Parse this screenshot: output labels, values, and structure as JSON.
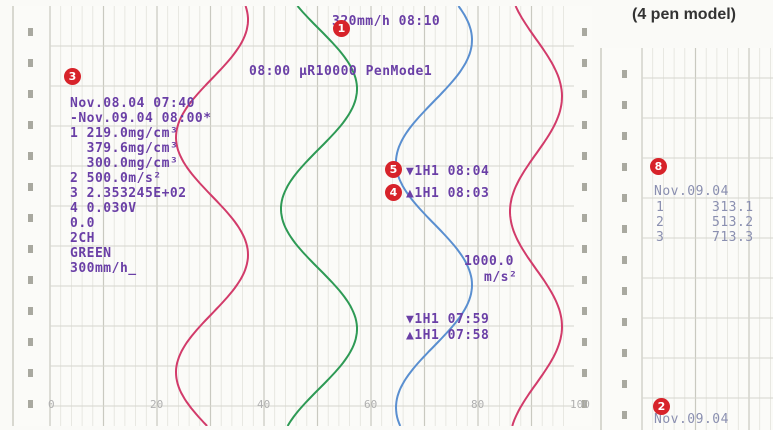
{
  "caption": "(4 pen model)",
  "markers": {
    "m1": "1",
    "m2": "2",
    "m3": "3",
    "m4": "4",
    "m5": "5",
    "m8": "8"
  },
  "header": {
    "speed_time": "320mm/h 08:10",
    "pen_mode": "08:00 μR10000 PenMode1"
  },
  "info_block": [
    "Nov.08.04 07:40",
    "-Nov.09.04 08:00*",
    "1 219.0mg/cm³",
    "  379.6mg/cm³",
    "  300.0mg/cm³",
    "2 500.0m/s²",
    "3 2.353245E+02",
    "4 0.030V",
    "0.0",
    "2CH",
    "GREEN",
    "300mm/h_"
  ],
  "alarms": {
    "a1": "▼1H1 08:04",
    "a2": "▲1H1 08:03",
    "a3": "▼1H1 07:59",
    "a4": "▲1H1 07:58"
  },
  "right_value": "1000.0",
  "right_unit": "m/s²",
  "scale_labels": [
    "0",
    "20",
    "40",
    "60",
    "80",
    "100"
  ],
  "panel2": {
    "date": "Nov.09.04",
    "rows": [
      {
        "n": "1",
        "v": "313.1"
      },
      {
        "n": "2",
        "v": "513.2"
      },
      {
        "n": "3",
        "v": "713.3"
      }
    ],
    "bottom_date": "Nov.09.04"
  },
  "colors": {
    "purple": "#6a3fa6",
    "red": "#d23b6a",
    "green": "#2e9a55",
    "blue": "#5a8fd0",
    "marker": "#d7232a"
  }
}
